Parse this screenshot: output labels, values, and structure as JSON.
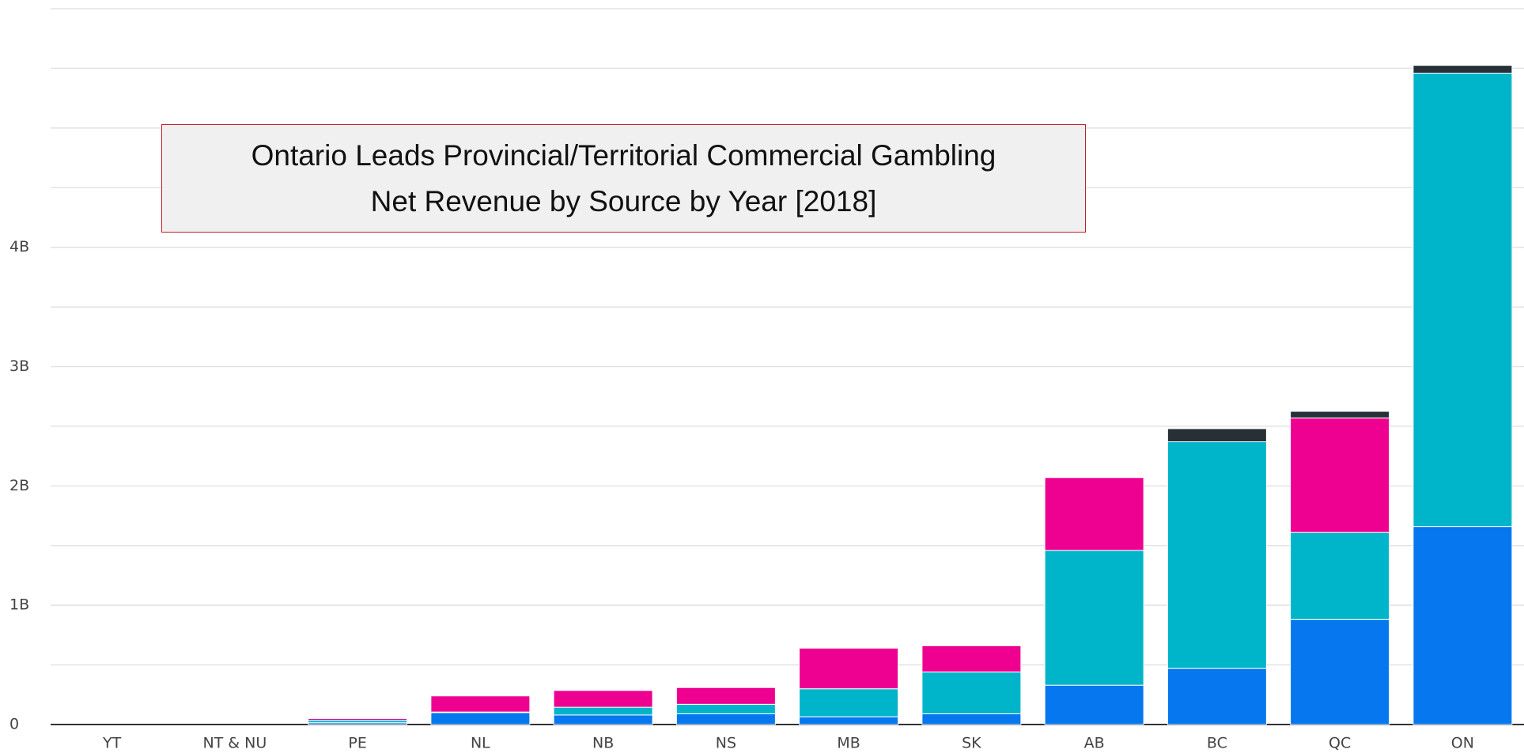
{
  "chart_data": {
    "type": "bar",
    "stacked": true,
    "title": "Ontario Leads Provincial/Territorial Commercial Gambling Net Revenue by Source by Year [2018]",
    "categories": [
      "YT",
      "NT & NU",
      "PE",
      "NL",
      "NB",
      "NS",
      "MB",
      "SK",
      "AB",
      "BC",
      "QC",
      "ON"
    ],
    "series": [
      {
        "color": "#0677ee",
        "values": [
          0,
          0,
          15000000,
          100000000,
          80000000,
          90000000,
          65000000,
          90000000,
          330000000,
          470000000,
          880000000,
          1660000000
        ]
      },
      {
        "color": "#00b5c9",
        "values": [
          0,
          0,
          20000000,
          5000000,
          65000000,
          80000000,
          235000000,
          350000000,
          1130000000,
          1900000000,
          730000000,
          3800000000
        ]
      },
      {
        "color": "#ee0090",
        "values": [
          0,
          0,
          15000000,
          135000000,
          140000000,
          140000000,
          340000000,
          220000000,
          610000000,
          0,
          960000000,
          0
        ]
      },
      {
        "color": "#263036",
        "values": [
          0,
          0,
          0,
          0,
          0,
          0,
          0,
          0,
          0,
          110000000,
          55000000,
          65000000
        ]
      }
    ],
    "ylim": [
      0,
      6000000000
    ],
    "yticks": [
      0,
      {
        "value": 1000000000,
        "label": "1B"
      },
      {
        "value": 2000000000,
        "label": "2B"
      },
      {
        "value": 3000000000,
        "label": "3B"
      },
      {
        "value": 4000000000,
        "label": "4B"
      }
    ],
    "ygrid": [
      500000000,
      1500000000,
      2500000000,
      3500000000,
      4500000000,
      5000000000,
      5500000000,
      6000000000
    ],
    "grid": true
  }
}
